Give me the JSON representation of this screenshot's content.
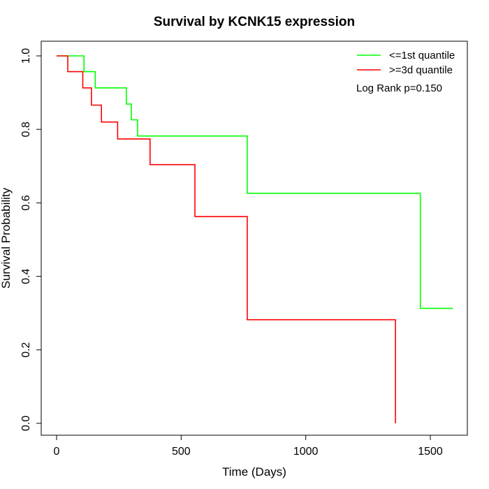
{
  "chart_data": {
    "type": "line",
    "title": "Survival by KCNK15 expression",
    "xlabel": "Time (Days)",
    "ylabel": "Survival Probability",
    "xlim": [
      0,
      1590
    ],
    "ylim": [
      0,
      1.0
    ],
    "xticks": [
      0,
      500,
      1000,
      1500
    ],
    "xtick_labels": [
      "0",
      "500",
      "1000",
      "1500"
    ],
    "yticks": [
      0.0,
      0.2,
      0.4,
      0.6,
      0.8,
      1.0
    ],
    "ytick_labels": [
      "0.0",
      "0.2",
      "0.4",
      "0.6",
      "0.8",
      "1.0"
    ],
    "grid": false,
    "legend_position": "top-right",
    "annotation": "Log Rank p=0.150",
    "series": [
      {
        "name": "<=1st quantile",
        "color": "#00ff00",
        "step": true,
        "points": [
          [
            0,
            1.0
          ],
          [
            110,
            1.0
          ],
          [
            110,
            0.957
          ],
          [
            155,
            0.957
          ],
          [
            155,
            0.913
          ],
          [
            280,
            0.913
          ],
          [
            280,
            0.869
          ],
          [
            300,
            0.869
          ],
          [
            300,
            0.826
          ],
          [
            325,
            0.826
          ],
          [
            325,
            0.782
          ],
          [
            765,
            0.782
          ],
          [
            765,
            0.626
          ],
          [
            1460,
            0.626
          ],
          [
            1460,
            0.313
          ],
          [
            1590,
            0.313
          ]
        ]
      },
      {
        "name": ">=3d quantile",
        "color": "#ff0000",
        "step": true,
        "points": [
          [
            0,
            1.0
          ],
          [
            45,
            1.0
          ],
          [
            45,
            0.957
          ],
          [
            105,
            0.957
          ],
          [
            105,
            0.913
          ],
          [
            140,
            0.913
          ],
          [
            140,
            0.866
          ],
          [
            180,
            0.866
          ],
          [
            180,
            0.82
          ],
          [
            245,
            0.82
          ],
          [
            245,
            0.774
          ],
          [
            375,
            0.774
          ],
          [
            375,
            0.704
          ],
          [
            555,
            0.704
          ],
          [
            555,
            0.563
          ],
          [
            765,
            0.563
          ],
          [
            765,
            0.282
          ],
          [
            1360,
            0.282
          ],
          [
            1360,
            0.0
          ]
        ]
      }
    ]
  }
}
